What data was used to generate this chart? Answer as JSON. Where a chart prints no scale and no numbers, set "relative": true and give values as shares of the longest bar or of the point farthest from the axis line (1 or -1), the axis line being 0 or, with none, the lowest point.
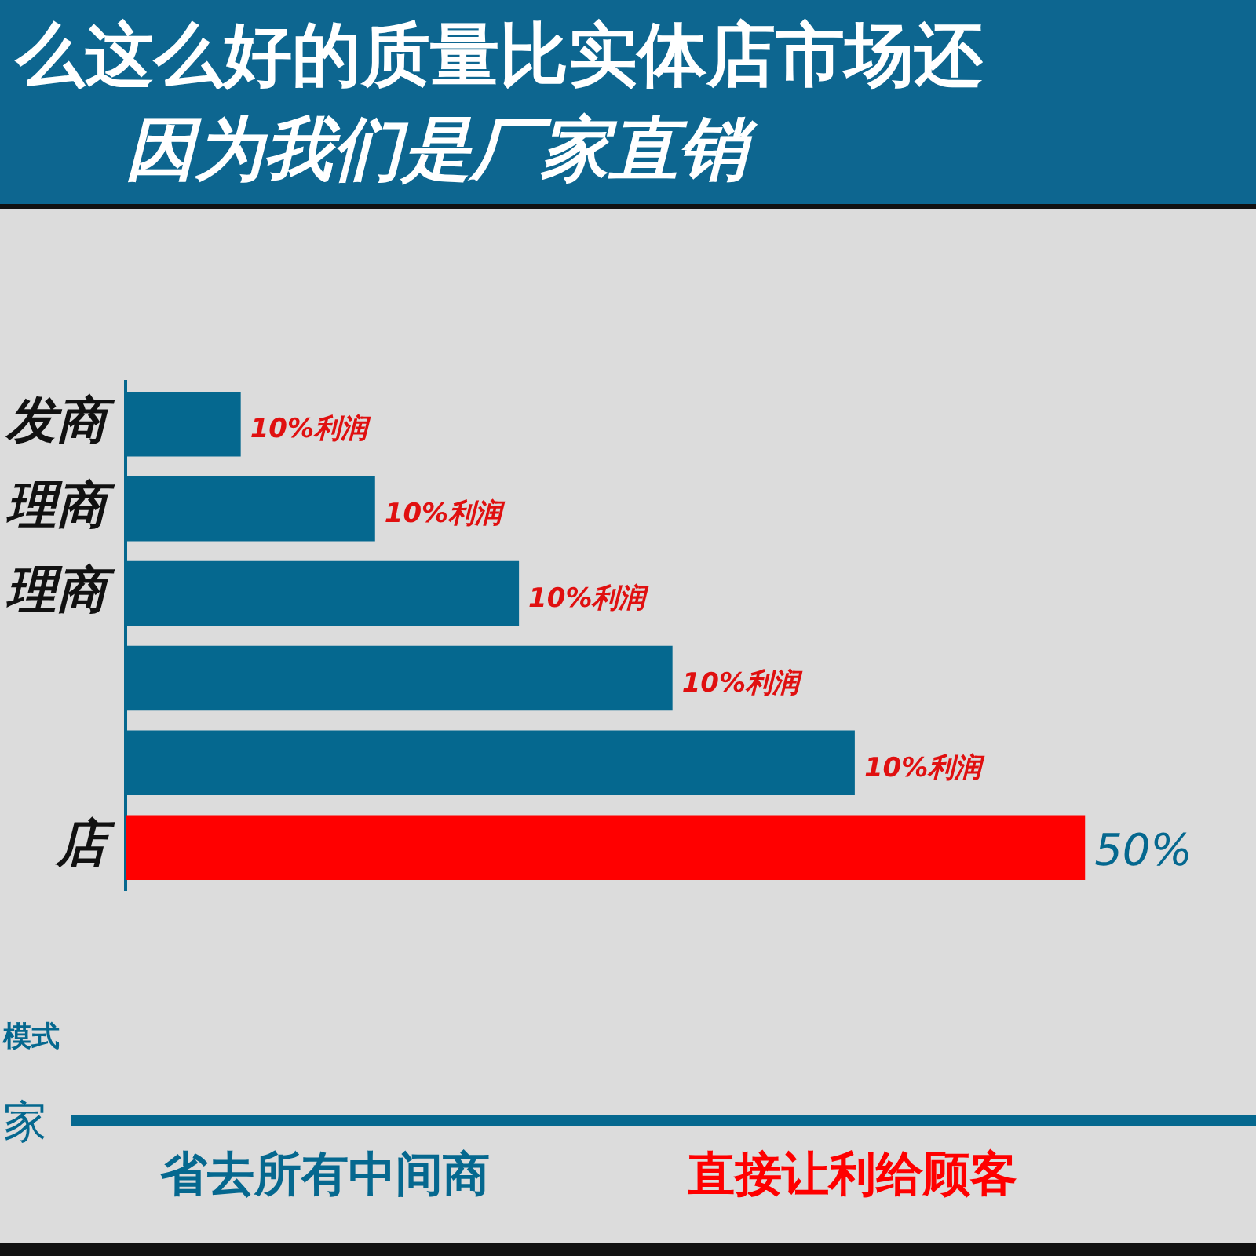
{
  "chart_data": {
    "type": "bar",
    "orientation": "horizontal",
    "relative": true,
    "title": "么这么好的质量比实体店市场还",
    "subtitle": "因为我们是厂家直销",
    "categories": [
      "发商",
      "理商",
      "理商",
      null,
      null,
      "店"
    ],
    "values": [
      0.12,
      0.26,
      0.41,
      0.57,
      0.76,
      1
    ],
    "colors": [
      "#05688f",
      "#05688f",
      "#05688f",
      "#05688f",
      "#05688f",
      "#ff0000"
    ],
    "legend": false,
    "annotations": [
      "10%利润",
      "10%利润",
      "10%利润",
      "10%利润",
      "10%利润",
      "50%",
      "模式",
      "家",
      "省去所有中间商",
      "直接让利给顾客"
    ]
  }
}
